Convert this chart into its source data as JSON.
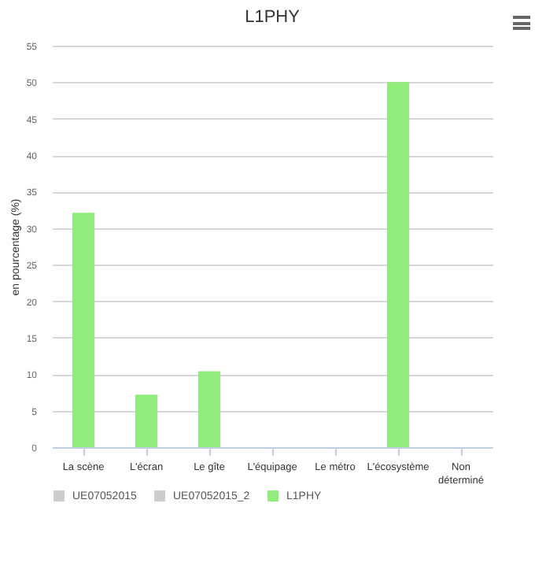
{
  "chart_data": {
    "type": "bar",
    "title": "L1PHY",
    "ylabel": "en pourcentage (%)",
    "categories": [
      "La scène",
      "L'écran",
      "Le gîte",
      "L'équipage",
      "Le métro",
      "L'écosystème",
      "Non déterminé"
    ],
    "series": [
      {
        "name": "UE07052015",
        "color": "#cccccc",
        "values": [
          null,
          null,
          null,
          null,
          null,
          null,
          null
        ]
      },
      {
        "name": "UE07052015_2",
        "color": "#cccccc",
        "values": [
          null,
          null,
          null,
          null,
          null,
          null,
          null
        ]
      },
      {
        "name": "L1PHY",
        "color": "#90ed7d",
        "values": [
          32.1,
          7.2,
          10.4,
          0,
          0,
          50,
          0
        ]
      }
    ],
    "ylim": [
      0,
      55
    ],
    "yticks": [
      0,
      5,
      10,
      15,
      20,
      25,
      30,
      35,
      40,
      45,
      50,
      55
    ],
    "grid": "y",
    "legend": "bottom"
  }
}
